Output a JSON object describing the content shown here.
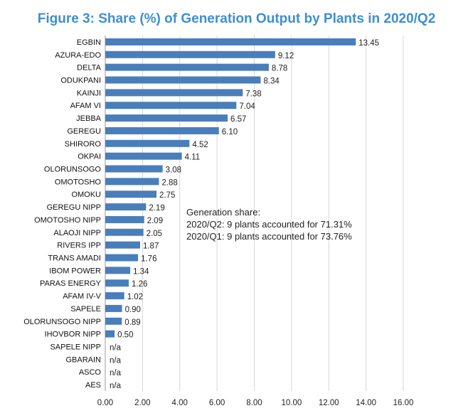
{
  "chart_data": {
    "type": "bar",
    "orientation": "horizontal",
    "title": "Figure 3: Share (%) of Generation Output by Plants in 2020/Q2",
    "xlabel": "",
    "ylabel": "",
    "xlim": [
      0,
      16
    ],
    "x_ticks": [
      "0.00",
      "2.00",
      "4.00",
      "6.00",
      "8.00",
      "10.00",
      "12.00",
      "14.00",
      "16.00"
    ],
    "grid": "vertical",
    "bar_color": "#4a7ebb",
    "categories": [
      "EGBIN",
      "AZURA-EDO",
      "DELTA",
      "ODUKPANI",
      "KAINJI",
      "AFAM VI",
      "JEBBA",
      "GEREGU",
      "SHIRORO",
      "OKPAI",
      "OLORUNSOGO",
      "OMOTOSHO",
      "OMOKU",
      "GEREGU NIPP",
      "OMOTOSHO NIPP",
      "ALAOJI NIPP",
      "RIVERS IPP",
      "TRANS AMADI",
      "IBOM POWER",
      "PARAS ENERGY",
      "AFAM IV-V",
      "SAPELE",
      "OLORUNSOGO NIPP",
      "IHOVBOR NIPP",
      "SAPELE NIPP",
      "GBARAIN",
      "ASCO",
      "AES"
    ],
    "values": [
      13.45,
      9.12,
      8.78,
      8.34,
      7.38,
      7.04,
      6.57,
      6.1,
      4.52,
      4.11,
      3.08,
      2.88,
      2.75,
      2.19,
      2.09,
      2.05,
      1.87,
      1.76,
      1.34,
      1.26,
      1.02,
      0.9,
      0.89,
      0.5,
      null,
      null,
      null,
      null
    ],
    "value_labels": [
      "13.45",
      "9.12",
      "8.78",
      "8.34",
      "7.38",
      "7.04",
      "6.57",
      "6.10",
      "4.52",
      "4.11",
      "3.08",
      "2.88",
      "2.75",
      "2.19",
      "2.09",
      "2.05",
      "1.87",
      "1.76",
      "1.34",
      "1.26",
      "1.02",
      "0.90",
      "0.89",
      "0.50",
      "n/a",
      "n/a",
      "n/a",
      "n/a"
    ],
    "annotation": [
      "Generation share:",
      "2020/Q2: 9 plants accounted for 71.31%",
      "2020/Q1: 9 plants accounted for 73.76%"
    ]
  }
}
